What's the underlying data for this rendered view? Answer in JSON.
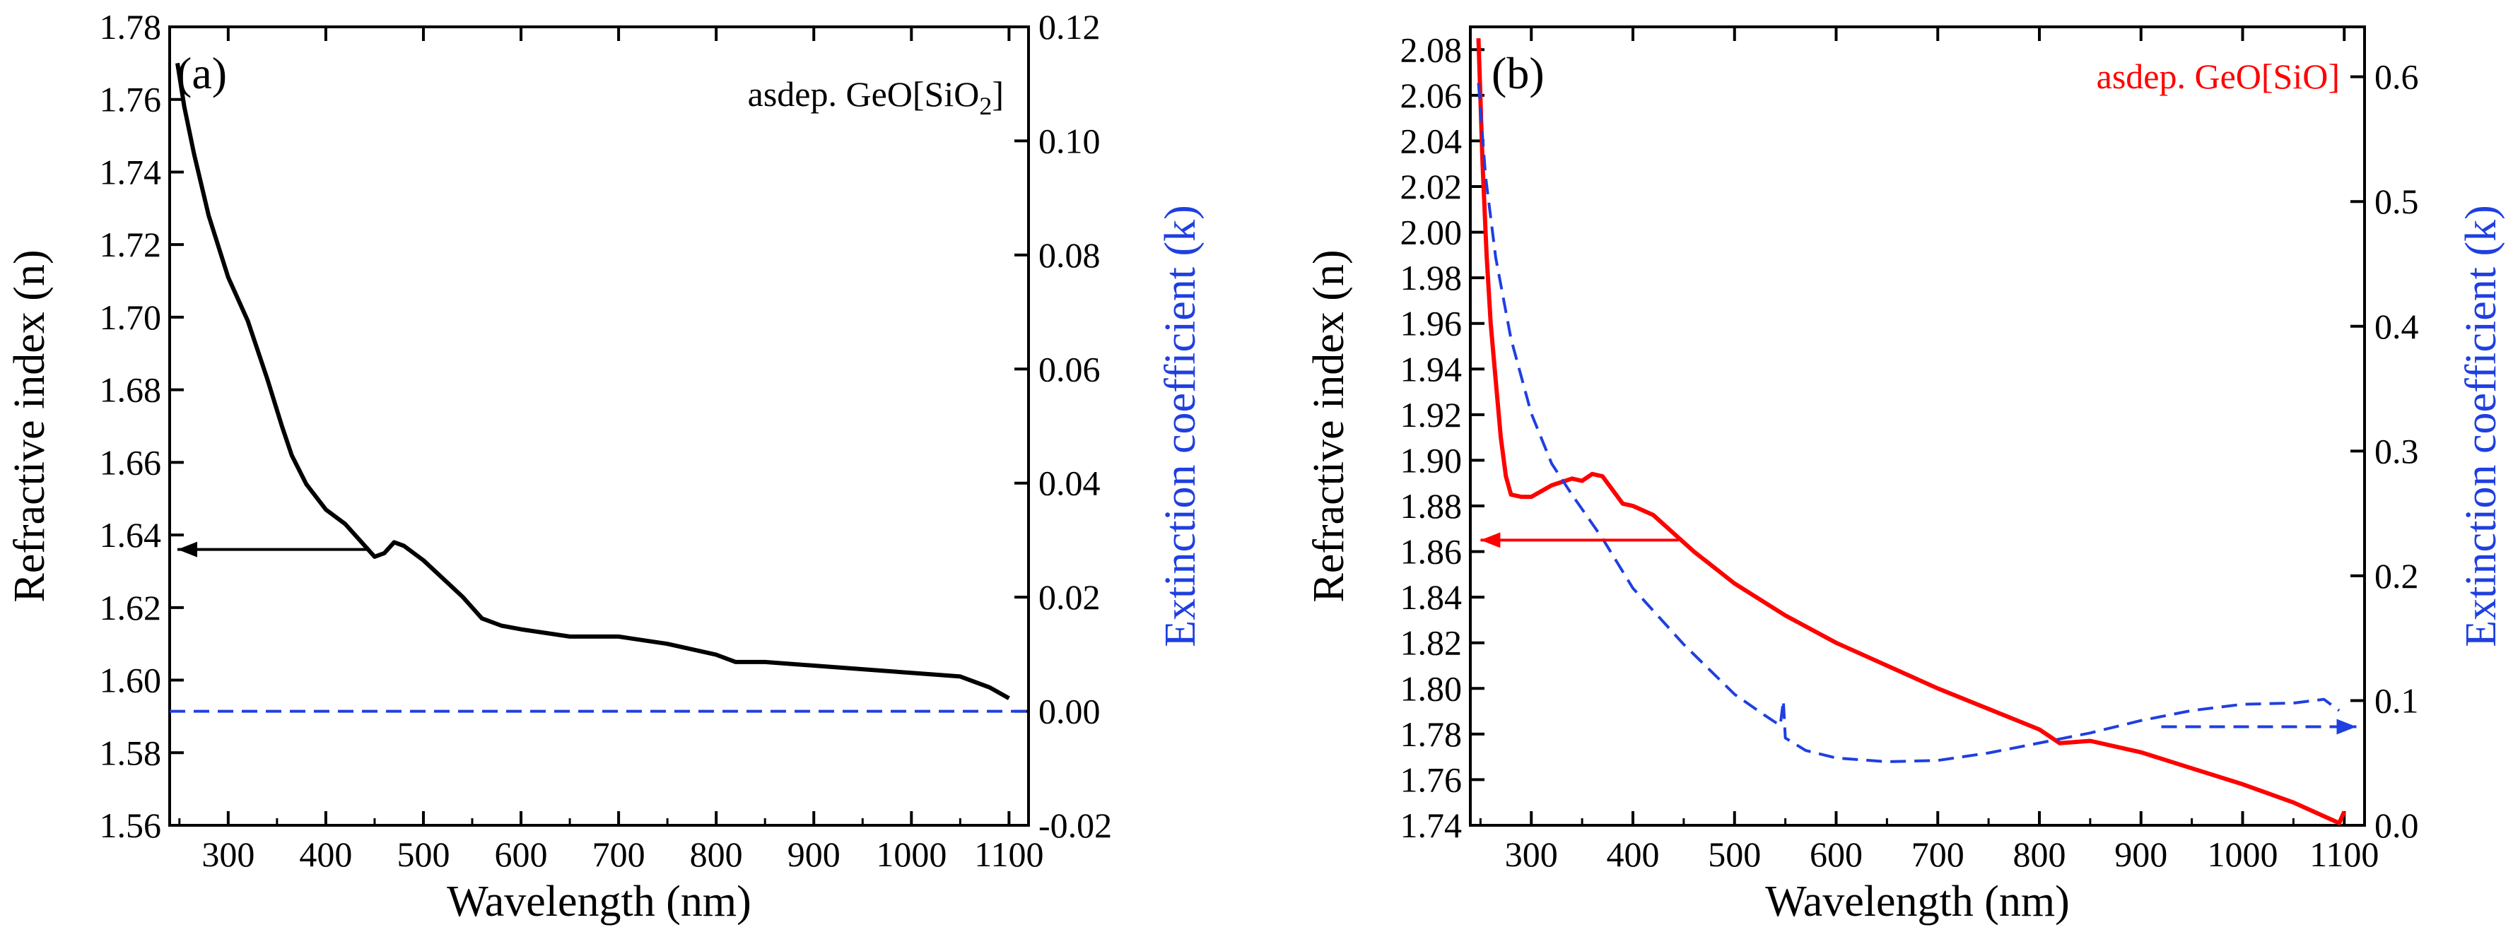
{
  "chart_data": [
    {
      "type": "line",
      "panel_label": "(a)",
      "annotation": "asdep. GeO[SiO",
      "annotation_subscript": "2",
      "annotation_suffix": "]",
      "annotation_color": "#000000",
      "xlabel": "Wavelength (nm)",
      "ylabel_left": "Refractive index (n)",
      "ylabel_right": "Extinction coefficient (k)",
      "xlim": [
        240,
        1120
      ],
      "ylim_left": [
        1.56,
        1.78
      ],
      "ylim_right": [
        -0.02,
        0.12
      ],
      "xticks": [
        300,
        400,
        500,
        600,
        700,
        800,
        900,
        1000,
        1100
      ],
      "yticks_left": [
        1.56,
        1.58,
        1.6,
        1.62,
        1.64,
        1.66,
        1.68,
        1.7,
        1.72,
        1.74,
        1.76,
        1.78
      ],
      "yticks_right": [
        -0.02,
        0.0,
        0.02,
        0.04,
        0.06,
        0.08,
        0.1,
        0.12
      ],
      "ytick_labels_right": [
        "-0.02",
        "0.00",
        "0.02",
        "0.04",
        "0.06",
        "0.08",
        "0.10",
        "0.12"
      ],
      "arrow": {
        "direction": "left",
        "y_left": 1.636,
        "x_from": 445,
        "x_to": 248,
        "color": "#000000"
      },
      "series": [
        {
          "name": "n",
          "axis": "left",
          "color": "#000000",
          "style": "solid",
          "x": [
            248,
            255,
            265,
            280,
            300,
            320,
            340,
            355,
            365,
            380,
            400,
            420,
            440,
            450,
            460,
            470,
            480,
            500,
            520,
            540,
            560,
            580,
            600,
            650,
            700,
            750,
            800,
            820,
            850,
            900,
            950,
            1000,
            1050,
            1080,
            1100
          ],
          "y": [
            1.77,
            1.758,
            1.745,
            1.728,
            1.711,
            1.699,
            1.683,
            1.67,
            1.662,
            1.654,
            1.647,
            1.643,
            1.637,
            1.634,
            1.635,
            1.638,
            1.637,
            1.633,
            1.628,
            1.623,
            1.617,
            1.615,
            1.614,
            1.612,
            1.612,
            1.61,
            1.607,
            1.605,
            1.605,
            1.604,
            1.603,
            1.602,
            1.601,
            1.598,
            1.595
          ]
        },
        {
          "name": "k",
          "axis": "right",
          "color": "#1f3fe0",
          "style": "dashed",
          "x": [
            240,
            1120
          ],
          "y": [
            0.0,
            0.0
          ]
        }
      ]
    },
    {
      "type": "line",
      "panel_label": "(b)",
      "annotation": "asdep. GeO[SiO]",
      "annotation_color": "#ff0000",
      "xlabel": "Wavelength (nm)",
      "ylabel_left": "Refractive index (n)",
      "ylabel_right": "Extinction coefficient (k)",
      "xlim": [
        240,
        1120
      ],
      "ylim_left": [
        1.74,
        2.09
      ],
      "ylim_right": [
        0.0,
        0.64
      ],
      "xticks": [
        300,
        400,
        500,
        600,
        700,
        800,
        900,
        1000,
        1100
      ],
      "yticks_left": [
        1.74,
        1.76,
        1.78,
        1.8,
        1.82,
        1.84,
        1.86,
        1.88,
        1.9,
        1.92,
        1.94,
        1.96,
        1.98,
        2.0,
        2.02,
        2.04,
        2.06,
        2.08
      ],
      "yticks_right": [
        0.0,
        0.1,
        0.2,
        0.3,
        0.4,
        0.5,
        0.6
      ],
      "ytick_labels_right": [
        "0.0",
        "0.1",
        "0.2",
        "0.3",
        "0.4",
        "0.5",
        "0.6"
      ],
      "arrows": [
        {
          "direction": "left",
          "axis": "left",
          "y": 1.865,
          "x_from": 445,
          "x_to": 250,
          "color": "#ff0000"
        },
        {
          "direction": "right",
          "axis": "right",
          "y": 0.079,
          "x_from": 920,
          "x_to": 1112,
          "color": "#1f3fe0"
        }
      ],
      "series": [
        {
          "name": "n",
          "axis": "left",
          "color": "#ff0000",
          "style": "solid",
          "x": [
            248,
            252,
            256,
            260,
            265,
            270,
            275,
            280,
            290,
            300,
            320,
            340,
            350,
            360,
            370,
            380,
            390,
            400,
            420,
            440,
            460,
            500,
            550,
            600,
            650,
            700,
            750,
            800,
            820,
            850,
            900,
            950,
            1000,
            1050,
            1080,
            1095,
            1100
          ],
          "y": [
            2.085,
            2.03,
            1.99,
            1.96,
            1.935,
            1.91,
            1.893,
            1.885,
            1.884,
            1.884,
            1.889,
            1.892,
            1.891,
            1.894,
            1.893,
            1.887,
            1.881,
            1.88,
            1.876,
            1.868,
            1.86,
            1.846,
            1.832,
            1.82,
            1.81,
            1.8,
            1.791,
            1.782,
            1.776,
            1.777,
            1.772,
            1.765,
            1.758,
            1.75,
            1.744,
            1.741,
            1.746
          ]
        },
        {
          "name": "k",
          "axis": "right",
          "color": "#1f3fe0",
          "style": "dashed",
          "x": [
            248,
            255,
            265,
            280,
            300,
            320,
            340,
            370,
            400,
            450,
            500,
            530,
            545,
            548,
            550,
            570,
            600,
            650,
            700,
            750,
            800,
            850,
            900,
            950,
            1000,
            1050,
            1080,
            1095
          ],
          "y": [
            0.595,
            0.52,
            0.455,
            0.39,
            0.33,
            0.29,
            0.265,
            0.23,
            0.19,
            0.145,
            0.105,
            0.088,
            0.08,
            0.1,
            0.07,
            0.06,
            0.054,
            0.051,
            0.052,
            0.058,
            0.066,
            0.074,
            0.084,
            0.092,
            0.097,
            0.098,
            0.101,
            0.092
          ]
        }
      ]
    }
  ]
}
